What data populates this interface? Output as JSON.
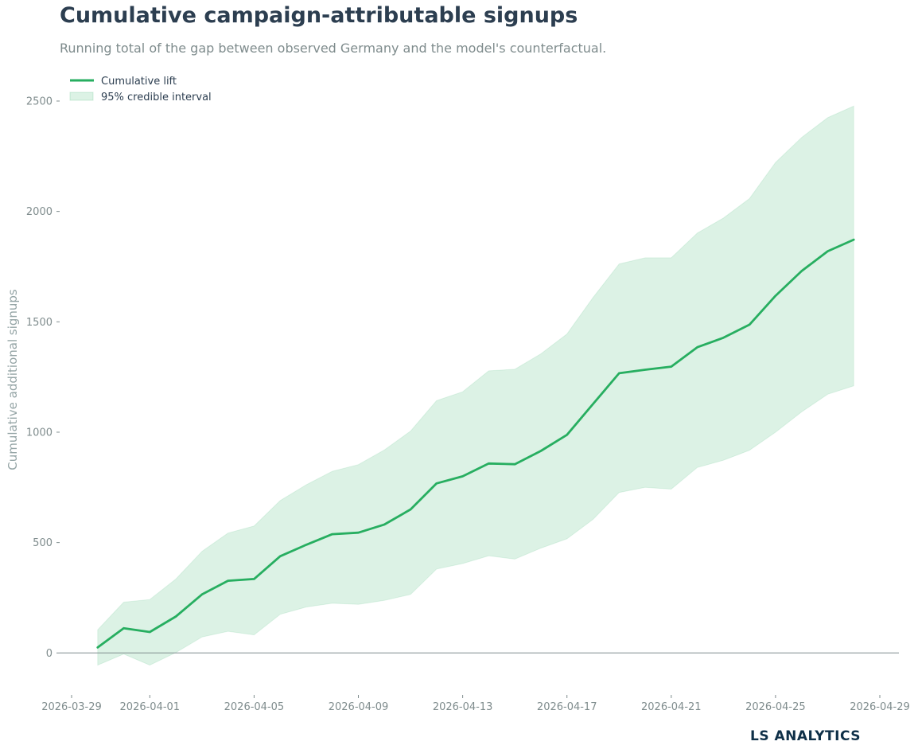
{
  "header": {
    "title": "Cumulative campaign-attributable signups",
    "subtitle": "Running total of the gap between observed Germany and the model's counterfactual."
  },
  "footer": {
    "brand": "LS ANALYTICS"
  },
  "colors": {
    "line": "#27ae60",
    "band": "#27ae60",
    "zero_line": "#7f8c8d",
    "title": "#2c3e50",
    "muted": "#7f8c8d",
    "brand": "#0f3048"
  },
  "chart_data": {
    "type": "line",
    "title": "Cumulative campaign-attributable signups",
    "subtitle": "Running total of the gap between observed Germany and the model's counterfactual.",
    "xlabel": "",
    "ylabel": "Cumulative additional signups",
    "x_type": "date",
    "xlim": [
      "2026-03-29",
      "2026-04-29"
    ],
    "ylim": [
      -190,
      2590
    ],
    "x_ticks": [
      "2026-03-29",
      "2026-04-01",
      "2026-04-05",
      "2026-04-09",
      "2026-04-13",
      "2026-04-17",
      "2026-04-21",
      "2026-04-25",
      "2026-04-29"
    ],
    "y_ticks": [
      0,
      500,
      1000,
      1500,
      2000,
      2500
    ],
    "reference_line_y": 0,
    "grid": false,
    "legend_position": "top-left",
    "x": [
      "2026-03-30",
      "2026-03-31",
      "2026-04-01",
      "2026-04-02",
      "2026-04-03",
      "2026-04-04",
      "2026-04-05",
      "2026-04-06",
      "2026-04-07",
      "2026-04-08",
      "2026-04-09",
      "2026-04-10",
      "2026-04-11",
      "2026-04-12",
      "2026-04-13",
      "2026-04-14",
      "2026-04-15",
      "2026-04-16",
      "2026-04-17",
      "2026-04-18",
      "2026-04-19",
      "2026-04-20",
      "2026-04-21",
      "2026-04-22",
      "2026-04-23",
      "2026-04-24",
      "2026-04-25",
      "2026-04-26",
      "2026-04-27",
      "2026-04-28"
    ],
    "series": [
      {
        "name": "Cumulative lift",
        "values": [
          25,
          112,
          95,
          165,
          265,
          327,
          335,
          438,
          490,
          538,
          545,
          582,
          650,
          768,
          800,
          858,
          855,
          915,
          988,
          1128,
          1267,
          1283,
          1297,
          1385,
          1428,
          1487,
          1618,
          1730,
          1820,
          1872
        ]
      }
    ],
    "interval": {
      "name": "95% credible interval",
      "lower": [
        -55,
        -5,
        -55,
        2,
        72,
        98,
        82,
        175,
        208,
        225,
        220,
        238,
        265,
        380,
        405,
        440,
        425,
        475,
        517,
        605,
        727,
        750,
        742,
        840,
        873,
        918,
        1000,
        1092,
        1172,
        1210
      ],
      "upper": [
        105,
        230,
        242,
        335,
        460,
        543,
        575,
        690,
        762,
        823,
        853,
        920,
        1005,
        1143,
        1183,
        1278,
        1285,
        1355,
        1445,
        1610,
        1762,
        1790,
        1790,
        1902,
        1970,
        2058,
        2222,
        2335,
        2425,
        2477
      ]
    }
  }
}
